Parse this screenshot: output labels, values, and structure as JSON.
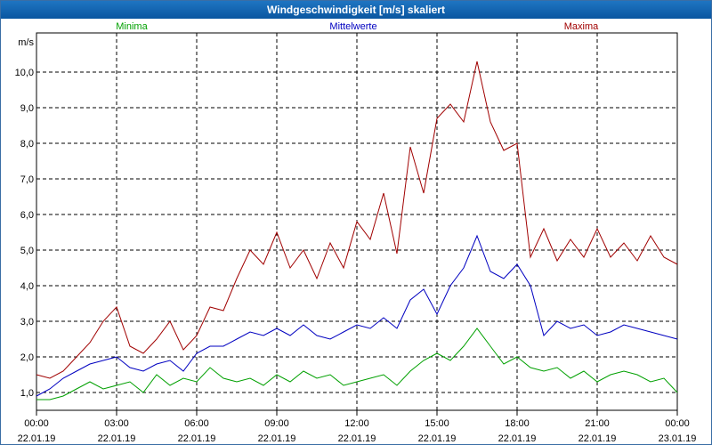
{
  "window": {
    "title": "Windgeschwindigkeit [m/s] skaliert"
  },
  "chart_data": {
    "type": "line",
    "title": "Windgeschwindigkeit [m/s] skaliert",
    "ylabel": "m/s",
    "xlabel": "",
    "ylim": [
      0.5,
      11.1
    ],
    "xlim": [
      0,
      24
    ],
    "grid": true,
    "yticks": [
      1.0,
      2.0,
      3.0,
      4.0,
      5.0,
      6.0,
      7.0,
      8.0,
      9.0,
      10.0
    ],
    "ytick_labels": [
      "1,0",
      "2,0",
      "3,0",
      "4,0",
      "5,0",
      "6,0",
      "7,0",
      "8,0",
      "9,0",
      "10,0"
    ],
    "xticks": [
      0,
      3,
      6,
      9,
      12,
      15,
      18,
      21,
      24
    ],
    "xtick_times": [
      "00:00",
      "03:00",
      "06:00",
      "09:00",
      "12:00",
      "15:00",
      "18:00",
      "21:00",
      "00:00"
    ],
    "xtick_dates": [
      "22.01.19",
      "22.01.19",
      "22.01.19",
      "22.01.19",
      "22.01.19",
      "22.01.19",
      "22.01.19",
      "22.01.19",
      "23.01.19"
    ],
    "series": [
      {
        "name": "Minima",
        "color": "#00a000",
        "x": [
          0,
          0.5,
          1,
          1.5,
          2,
          2.5,
          3,
          3.5,
          4,
          4.5,
          5,
          5.5,
          6,
          6.5,
          7,
          7.5,
          8,
          8.5,
          9,
          9.5,
          10,
          10.5,
          11,
          11.5,
          12,
          12.5,
          13,
          13.5,
          14,
          14.5,
          15,
          15.5,
          16,
          16.5,
          17,
          17.5,
          18,
          18.5,
          19,
          19.5,
          20,
          20.5,
          21,
          21.5,
          22,
          22.5,
          23,
          23.5,
          24
        ],
        "values": [
          0.8,
          0.8,
          0.9,
          1.1,
          1.3,
          1.1,
          1.2,
          1.3,
          1.0,
          1.5,
          1.2,
          1.4,
          1.3,
          1.7,
          1.4,
          1.3,
          1.4,
          1.2,
          1.5,
          1.3,
          1.6,
          1.4,
          1.5,
          1.2,
          1.3,
          1.4,
          1.5,
          1.2,
          1.6,
          1.9,
          2.1,
          1.9,
          2.3,
          2.8,
          2.3,
          1.8,
          2.0,
          1.7,
          1.6,
          1.7,
          1.4,
          1.6,
          1.3,
          1.5,
          1.6,
          1.5,
          1.3,
          1.4,
          1.0
        ]
      },
      {
        "name": "Mittelwerte",
        "color": "#0000c0",
        "x": [
          0,
          0.5,
          1,
          1.5,
          2,
          2.5,
          3,
          3.5,
          4,
          4.5,
          5,
          5.5,
          6,
          6.5,
          7,
          7.5,
          8,
          8.5,
          9,
          9.5,
          10,
          10.5,
          11,
          11.5,
          12,
          12.5,
          13,
          13.5,
          14,
          14.5,
          15,
          15.5,
          16,
          16.5,
          17,
          17.5,
          18,
          18.5,
          19,
          19.5,
          20,
          20.5,
          21,
          21.5,
          22,
          22.5,
          23,
          23.5,
          24
        ],
        "values": [
          0.9,
          1.1,
          1.4,
          1.6,
          1.8,
          1.9,
          2.0,
          1.7,
          1.6,
          1.8,
          1.9,
          1.6,
          2.1,
          2.3,
          2.3,
          2.5,
          2.7,
          2.6,
          2.8,
          2.6,
          2.9,
          2.6,
          2.5,
          2.7,
          2.9,
          2.8,
          3.1,
          2.8,
          3.6,
          3.9,
          3.2,
          4.0,
          4.5,
          5.4,
          4.4,
          4.2,
          4.6,
          4.0,
          2.6,
          3.0,
          2.8,
          2.9,
          2.6,
          2.7,
          2.9,
          2.8,
          2.7,
          2.6,
          2.5
        ]
      },
      {
        "name": "Maxima",
        "color": "#a00000",
        "x": [
          0,
          0.5,
          1,
          1.5,
          2,
          2.5,
          3,
          3.5,
          4,
          4.5,
          5,
          5.5,
          6,
          6.5,
          7,
          7.5,
          8,
          8.5,
          9,
          9.5,
          10,
          10.5,
          11,
          11.5,
          12,
          12.5,
          13,
          13.5,
          14,
          14.5,
          15,
          15.5,
          16,
          16.5,
          17,
          17.5,
          18,
          18.5,
          19,
          19.5,
          20,
          20.5,
          21,
          21.5,
          22,
          22.5,
          23,
          23.5,
          24
        ],
        "values": [
          1.5,
          1.4,
          1.6,
          2.0,
          2.4,
          3.0,
          3.4,
          2.3,
          2.1,
          2.5,
          3.0,
          2.2,
          2.6,
          3.4,
          3.3,
          4.2,
          5.0,
          4.6,
          5.5,
          4.5,
          5.0,
          4.2,
          5.2,
          4.5,
          5.8,
          5.3,
          6.6,
          4.9,
          7.9,
          6.6,
          8.7,
          9.1,
          8.6,
          10.3,
          8.6,
          7.8,
          8.0,
          4.8,
          5.6,
          4.7,
          5.3,
          4.8,
          5.6,
          4.8,
          5.2,
          4.7,
          5.4,
          4.8,
          4.6
        ]
      }
    ]
  }
}
